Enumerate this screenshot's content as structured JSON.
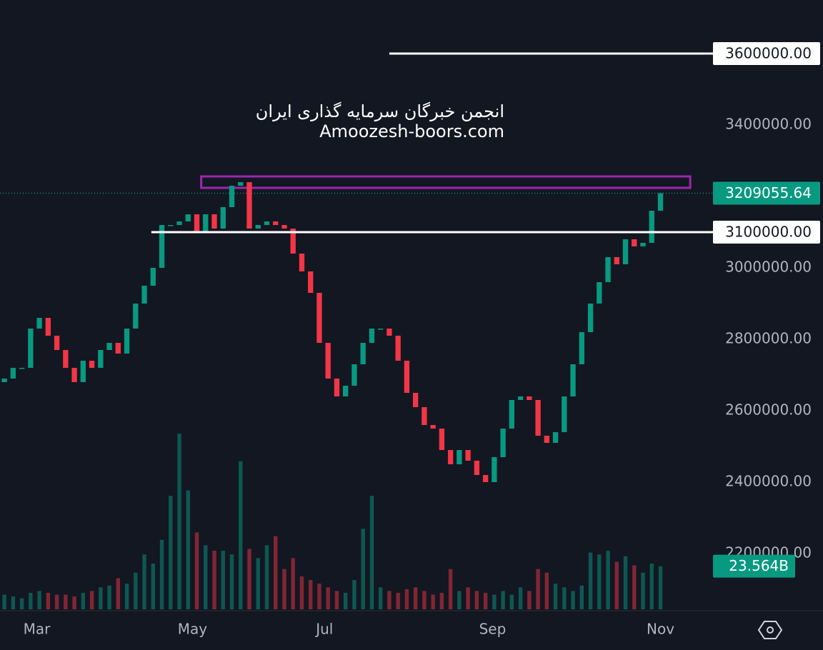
{
  "chart_data": {
    "type": "candlestick",
    "watermark": [
      "انجمن خبرگان سرمایه گذاری ایران",
      "Amoozesh-boors.com"
    ],
    "up_color": "#089981",
    "down_color": "#f23645",
    "open": [
      2680000,
      2690000,
      2720000,
      2720000,
      2830000,
      2860000,
      2810000,
      2770000,
      2720000,
      2680000,
      2740000,
      2720000,
      2770000,
      2790000,
      2760000,
      2830000,
      2900000,
      2950000,
      3000000,
      3120000,
      3120000,
      3130000,
      3150000,
      3100000,
      3150000,
      3110000,
      3170000,
      3230000,
      3240000,
      3110000,
      3120000,
      3130000,
      3120000,
      3110000,
      3040000,
      2990000,
      2930000,
      2790000,
      2690000,
      2640000,
      2670000,
      2730000,
      2790000,
      2830000,
      2830000,
      2810000,
      2740000,
      2650000,
      2610000,
      2560000,
      2550000,
      2490000,
      2450000,
      2490000,
      2460000,
      2420000,
      2400000,
      2470000,
      2550000,
      2630000,
      2640000,
      2630000,
      2530000,
      2510000,
      2540000,
      2640000,
      2730000,
      2820000,
      2900000,
      2960000,
      3030000,
      3010000,
      3080000,
      3060000,
      3070000,
      3160000
    ],
    "close": [
      2690000,
      2720000,
      2720000,
      2830000,
      2860000,
      2810000,
      2770000,
      2720000,
      2680000,
      2740000,
      2720000,
      2770000,
      2790000,
      2760000,
      2830000,
      2900000,
      2950000,
      3000000,
      3120000,
      3120000,
      3130000,
      3150000,
      3100000,
      3150000,
      3110000,
      3170000,
      3230000,
      3240000,
      3110000,
      3120000,
      3130000,
      3120000,
      3110000,
      3040000,
      2990000,
      2930000,
      2790000,
      2690000,
      2640000,
      2670000,
      2730000,
      2790000,
      2830000,
      2830000,
      2810000,
      2740000,
      2650000,
      2610000,
      2560000,
      2550000,
      2490000,
      2450000,
      2490000,
      2460000,
      2420000,
      2400000,
      2470000,
      2550000,
      2630000,
      2640000,
      2630000,
      2530000,
      2510000,
      2540000,
      2640000,
      2730000,
      2820000,
      2900000,
      2960000,
      3030000,
      3010000,
      3080000,
      3060000,
      3070000,
      3160000,
      3209055.64
    ],
    "volume": [
      8,
      7,
      6,
      9,
      10,
      9,
      8,
      8,
      7,
      9,
      10,
      12,
      13,
      17,
      14,
      20,
      30,
      25,
      38,
      62,
      96,
      65,
      42,
      35,
      32,
      32,
      30,
      81,
      33,
      28,
      35,
      40,
      22,
      28,
      18,
      16,
      14,
      12,
      10,
      9,
      16,
      44,
      62,
      12,
      10,
      9,
      11,
      12,
      10,
      8,
      9,
      22,
      10,
      12,
      10,
      9,
      8,
      10,
      8,
      12,
      10,
      22,
      20,
      14,
      12,
      10,
      13,
      31,
      30,
      32,
      26,
      29,
      24,
      20,
      25,
      23.564
    ],
    "volume_ylim": [
      0,
      100
    ],
    "volume_last": {
      "value": 23.564,
      "label": "23.564B"
    },
    "last_price": 3209055.64,
    "xlim": [
      -0.5,
      81
    ],
    "xticks": [
      {
        "value": 3.7,
        "label": "Mar"
      },
      {
        "value": 21.5,
        "label": "May"
      },
      {
        "value": 36.6,
        "label": "Jul"
      },
      {
        "value": 55.8,
        "label": "Sep"
      },
      {
        "value": 75,
        "label": "Nov"
      }
    ],
    "ylim": [
      2040000,
      3750000
    ],
    "yticks": [
      {
        "value": 3400000,
        "label": "3400000.00"
      },
      {
        "value": 3000000,
        "label": "3000000.00"
      },
      {
        "value": 2800000,
        "label": "2800000.00"
      },
      {
        "value": 2600000,
        "label": "2600000.00"
      },
      {
        "value": 2400000,
        "label": "2400000.00"
      },
      {
        "value": 2200000,
        "label": "2200000.00"
      }
    ],
    "levels": [
      {
        "value": 3600000,
        "label": "3600000.00",
        "x_start": 44
      },
      {
        "value": 3100000,
        "label": "3100000.00",
        "x_start": 16.8
      }
    ],
    "zone": {
      "y": [
        3224000,
        3256000
      ],
      "x": [
        22.5,
        78.4
      ],
      "color": "#9c27b0"
    }
  }
}
